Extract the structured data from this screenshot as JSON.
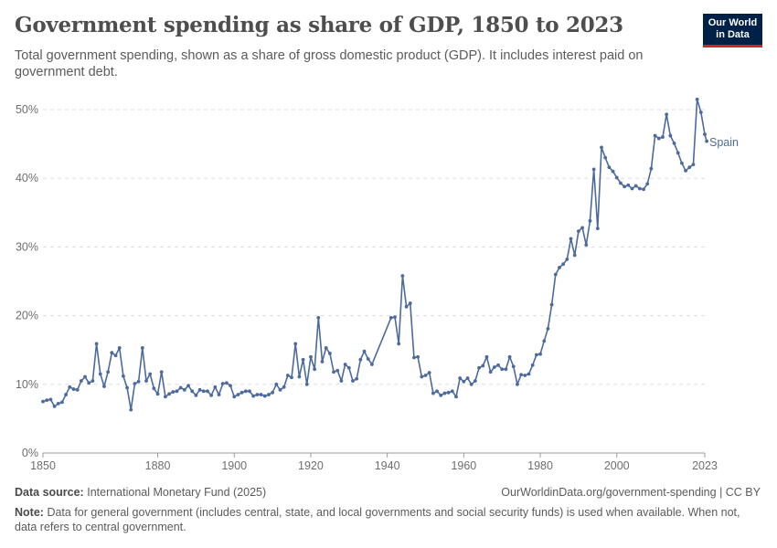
{
  "header": {
    "title": "Government spending as share of GDP, 1850 to 2023",
    "subtitle": "Total government spending, shown as a share of gross domestic product (GDP). It includes interest paid on government debt.",
    "logo_line1": "Our World",
    "logo_line2": "in Data"
  },
  "footer": {
    "source_label": "Data source:",
    "source_text": "International Monetary Fund (2025)",
    "url_text": "OurWorldinData.org/government-spending | CC BY",
    "note_label": "Note:",
    "note_text": "Data for general government (includes central, state, and local governments and social security funds) is used when available. When not, data refers to central government."
  },
  "colors": {
    "series": "#4c6a9c",
    "grid": "#dddddd",
    "axis": "#999999"
  },
  "chart_data": {
    "type": "line",
    "title": "Government spending as share of GDP, 1850 to 2023",
    "xlabel": "",
    "ylabel": "",
    "xlim": [
      1850,
      2023
    ],
    "ylim": [
      0,
      50
    ],
    "x_ticks": [
      1850,
      1880,
      1900,
      1920,
      1940,
      1960,
      1980,
      2000,
      2023
    ],
    "x_tick_labels": [
      "1850",
      "1880",
      "1900",
      "1920",
      "1940",
      "1960",
      "1980",
      "2000",
      "2023"
    ],
    "y_ticks": [
      0,
      10,
      20,
      30,
      40,
      50
    ],
    "y_tick_labels": [
      "0%",
      "10%",
      "20%",
      "30%",
      "40%",
      "50%"
    ],
    "grid": "horizontal dashed",
    "legend": "inline label at line end",
    "series": [
      {
        "name": "Spain",
        "points": [
          [
            1850,
            7.5
          ],
          [
            1851,
            7.7
          ],
          [
            1852,
            7.8
          ],
          [
            1853,
            6.8
          ],
          [
            1854,
            7.2
          ],
          [
            1855,
            7.4
          ],
          [
            1856,
            8.5
          ],
          [
            1857,
            9.6
          ],
          [
            1858,
            9.3
          ],
          [
            1859,
            9.2
          ],
          [
            1860,
            10.5
          ],
          [
            1861,
            11.1
          ],
          [
            1862,
            10.2
          ],
          [
            1863,
            10.5
          ],
          [
            1864,
            15.9
          ],
          [
            1865,
            11.5
          ],
          [
            1866,
            9.7
          ],
          [
            1867,
            11.8
          ],
          [
            1868,
            14.6
          ],
          [
            1869,
            14.2
          ],
          [
            1870,
            15.3
          ],
          [
            1871,
            11.2
          ],
          [
            1872,
            9.5
          ],
          [
            1873,
            6.3
          ],
          [
            1874,
            10.1
          ],
          [
            1875,
            10.4
          ],
          [
            1876,
            15.3
          ],
          [
            1877,
            10.5
          ],
          [
            1878,
            11.5
          ],
          [
            1879,
            9.4
          ],
          [
            1880,
            8.6
          ],
          [
            1881,
            11.8
          ],
          [
            1882,
            8.2
          ],
          [
            1883,
            8.6
          ],
          [
            1884,
            8.9
          ],
          [
            1885,
            9.0
          ],
          [
            1886,
            9.5
          ],
          [
            1887,
            9.2
          ],
          [
            1888,
            9.8
          ],
          [
            1889,
            9.0
          ],
          [
            1890,
            8.4
          ],
          [
            1891,
            9.2
          ],
          [
            1892,
            9.0
          ],
          [
            1893,
            9.0
          ],
          [
            1894,
            8.4
          ],
          [
            1895,
            9.6
          ],
          [
            1896,
            8.5
          ],
          [
            1897,
            10.1
          ],
          [
            1898,
            10.2
          ],
          [
            1899,
            9.8
          ],
          [
            1900,
            8.2
          ],
          [
            1901,
            8.5
          ],
          [
            1902,
            8.8
          ],
          [
            1903,
            9.0
          ],
          [
            1904,
            9.0
          ],
          [
            1905,
            8.3
          ],
          [
            1906,
            8.5
          ],
          [
            1907,
            8.5
          ],
          [
            1908,
            8.3
          ],
          [
            1909,
            8.5
          ],
          [
            1910,
            8.8
          ],
          [
            1911,
            10.0
          ],
          [
            1912,
            9.2
          ],
          [
            1913,
            9.6
          ],
          [
            1914,
            11.3
          ],
          [
            1915,
            11.0
          ],
          [
            1916,
            15.9
          ],
          [
            1917,
            11.1
          ],
          [
            1918,
            13.6
          ],
          [
            1919,
            10.0
          ],
          [
            1920,
            14.0
          ],
          [
            1921,
            12.2
          ],
          [
            1922,
            19.7
          ],
          [
            1923,
            13.3
          ],
          [
            1924,
            15.3
          ],
          [
            1925,
            14.5
          ],
          [
            1926,
            11.8
          ],
          [
            1927,
            12.0
          ],
          [
            1928,
            10.5
          ],
          [
            1929,
            12.9
          ],
          [
            1930,
            12.4
          ],
          [
            1931,
            10.5
          ],
          [
            1932,
            10.8
          ],
          [
            1933,
            13.6
          ],
          [
            1934,
            14.8
          ],
          [
            1935,
            13.7
          ],
          [
            1936,
            12.9
          ],
          [
            1941,
            19.7
          ],
          [
            1942,
            19.8
          ],
          [
            1943,
            15.9
          ],
          [
            1944,
            25.8
          ],
          [
            1945,
            21.3
          ],
          [
            1946,
            21.8
          ],
          [
            1947,
            13.9
          ],
          [
            1948,
            14.0
          ],
          [
            1949,
            11.1
          ],
          [
            1950,
            11.3
          ],
          [
            1951,
            11.7
          ],
          [
            1952,
            8.7
          ],
          [
            1953,
            9.0
          ],
          [
            1954,
            8.4
          ],
          [
            1955,
            8.7
          ],
          [
            1956,
            8.8
          ],
          [
            1957,
            9.0
          ],
          [
            1958,
            8.2
          ],
          [
            1959,
            10.9
          ],
          [
            1960,
            10.4
          ],
          [
            1961,
            10.9
          ],
          [
            1962,
            10.0
          ],
          [
            1963,
            10.5
          ],
          [
            1964,
            12.4
          ],
          [
            1965,
            12.7
          ],
          [
            1966,
            14.0
          ],
          [
            1967,
            11.8
          ],
          [
            1968,
            12.5
          ],
          [
            1969,
            12.8
          ],
          [
            1970,
            12.2
          ],
          [
            1971,
            12.2
          ],
          [
            1972,
            14.0
          ],
          [
            1973,
            12.6
          ],
          [
            1974,
            10.0
          ],
          [
            1975,
            11.4
          ],
          [
            1976,
            11.3
          ],
          [
            1977,
            11.5
          ],
          [
            1978,
            12.8
          ],
          [
            1979,
            14.3
          ],
          [
            1980,
            14.4
          ],
          [
            1981,
            16.3
          ],
          [
            1982,
            18.1
          ],
          [
            1983,
            21.6
          ],
          [
            1984,
            26.0
          ],
          [
            1985,
            27.0
          ],
          [
            1986,
            27.5
          ],
          [
            1987,
            28.2
          ],
          [
            1988,
            31.2
          ],
          [
            1989,
            28.8
          ],
          [
            1990,
            32.3
          ],
          [
            1991,
            32.8
          ],
          [
            1992,
            30.3
          ],
          [
            1993,
            33.8
          ],
          [
            1994,
            41.3
          ],
          [
            1995,
            32.7
          ],
          [
            1996,
            44.5
          ],
          [
            1997,
            43.0
          ],
          [
            1998,
            41.6
          ],
          [
            1999,
            41.0
          ],
          [
            2000,
            40.1
          ],
          [
            2001,
            39.3
          ],
          [
            2002,
            38.8
          ],
          [
            2003,
            39.0
          ],
          [
            2004,
            38.5
          ],
          [
            2005,
            38.9
          ],
          [
            2006,
            38.5
          ],
          [
            2007,
            38.4
          ],
          [
            2008,
            39.2
          ],
          [
            2009,
            41.4
          ],
          [
            2010,
            46.2
          ],
          [
            2011,
            45.8
          ],
          [
            2012,
            46.0
          ],
          [
            2013,
            49.3
          ],
          [
            2014,
            46.2
          ],
          [
            2015,
            45.1
          ],
          [
            2016,
            43.7
          ],
          [
            2017,
            42.2
          ],
          [
            2018,
            41.1
          ],
          [
            2019,
            41.6
          ],
          [
            2020,
            42.0
          ],
          [
            2021,
            51.5
          ],
          [
            2022,
            49.6
          ],
          [
            2023,
            46.4
          ],
          [
            2023.5,
            45.4
          ]
        ]
      }
    ]
  }
}
